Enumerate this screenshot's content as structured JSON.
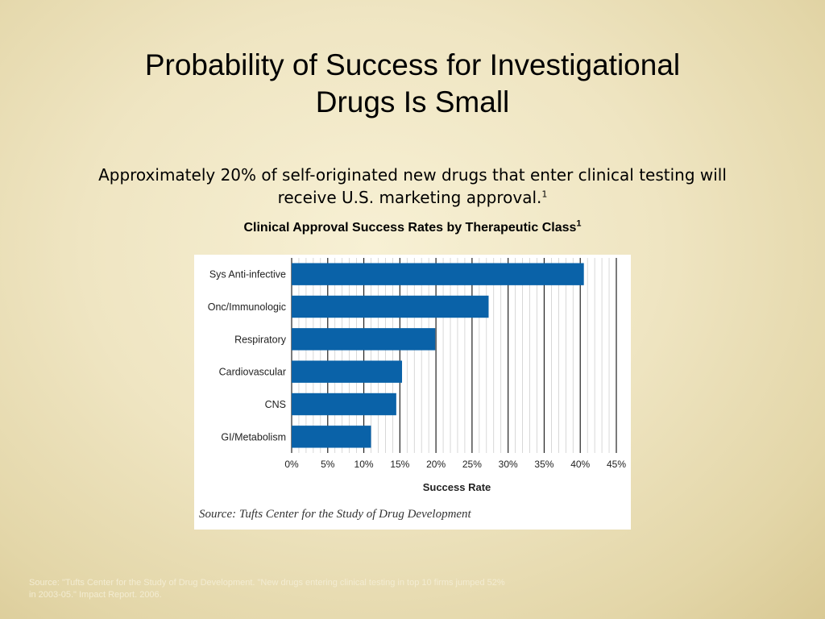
{
  "slide": {
    "title_line1": "Probability of Success for Investigational",
    "title_line2": "Drugs Is Small",
    "subtitle_line1": "Approximately 20% of self-originated new drugs that enter clinical testing will",
    "subtitle_line2": "receive U.S. marketing approval.",
    "subtitle_sup": "1",
    "chart_heading": "Clinical Approval Success Rates by Therapeutic Class",
    "chart_heading_sup": "1",
    "figure_source": "Source: Tufts Center for the Study of Drug Development",
    "footnote_line1": "Source: \"Tufts Center for the Study of Drug Development. \"New drugs entering clinical testing in top 10 firms jumped 52%",
    "footnote_line2": "in 2003-05.\" Impact Report. 2006."
  },
  "colors": {
    "bar": "#0a62a8",
    "grid_major": "#222222",
    "grid_minor": "#c8c8c8"
  },
  "chart_data": {
    "type": "bar",
    "orientation": "horizontal",
    "categories": [
      "Sys Anti-infective",
      "Onc/Immunologic",
      "Respiratory",
      "Cardiovascular",
      "CNS",
      "GI/Metabolism"
    ],
    "values": [
      40.5,
      27.3,
      19.9,
      15.3,
      14.5,
      11.0
    ],
    "xlabel": "Success Rate",
    "ylabel": "",
    "xlim": [
      0,
      45
    ],
    "x_ticks": [
      "0%",
      "5%",
      "10%",
      "15%",
      "20%",
      "25%",
      "30%",
      "35%",
      "40%",
      "45%"
    ],
    "grid": true,
    "legend": "none"
  }
}
